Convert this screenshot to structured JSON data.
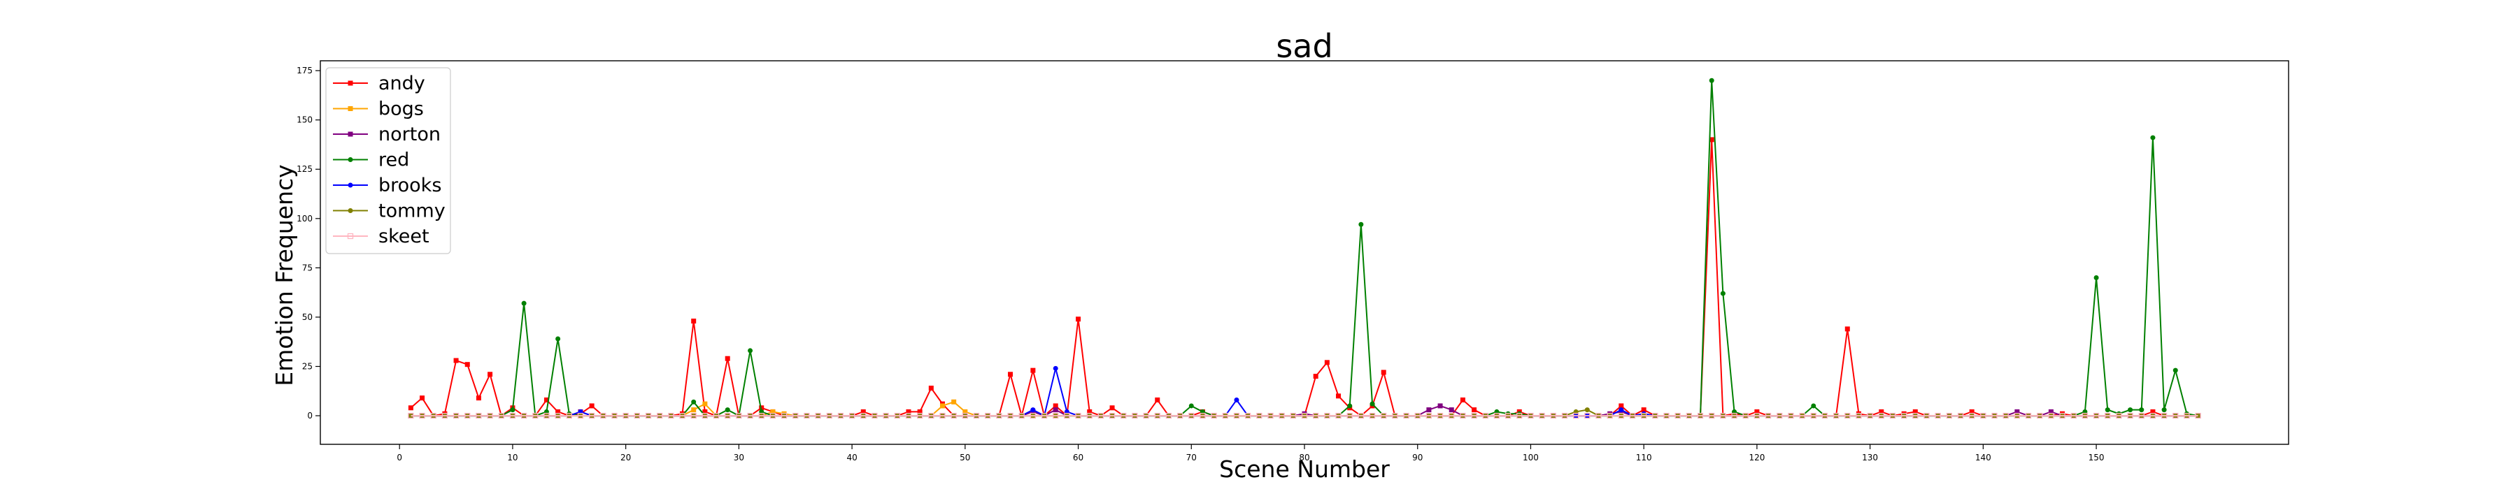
{
  "chart_data": {
    "type": "line",
    "title": "sad",
    "xlabel": "Scene Number",
    "ylabel": "Emotion Frequency",
    "xlim": [
      -7,
      167
    ],
    "ylim": [
      -14.5,
      180
    ],
    "x_ticks": [
      0,
      10,
      20,
      30,
      40,
      50,
      60,
      70,
      80,
      90,
      100,
      110,
      120,
      130,
      140,
      150
    ],
    "y_ticks": [
      0,
      25,
      50,
      75,
      100,
      125,
      150,
      175
    ],
    "x_range": [
      1,
      159
    ],
    "legend_position": "upper-left",
    "grid": false,
    "series": [
      {
        "name": "andy",
        "color": "#ff0000",
        "marker": "square",
        "points": [
          [
            1,
            4
          ],
          [
            2,
            9
          ],
          [
            4,
            1
          ],
          [
            5,
            28
          ],
          [
            6,
            26
          ],
          [
            7,
            9
          ],
          [
            8,
            21
          ],
          [
            10,
            4
          ],
          [
            13,
            8
          ],
          [
            14,
            2
          ],
          [
            16,
            1
          ],
          [
            17,
            5
          ],
          [
            25,
            1
          ],
          [
            26,
            48
          ],
          [
            27,
            2
          ],
          [
            29,
            29
          ],
          [
            32,
            4
          ],
          [
            33,
            2
          ],
          [
            41,
            2
          ],
          [
            45,
            2
          ],
          [
            46,
            2
          ],
          [
            47,
            14
          ],
          [
            48,
            6
          ],
          [
            54,
            21
          ],
          [
            56,
            23
          ],
          [
            58,
            5
          ],
          [
            60,
            49
          ],
          [
            61,
            2
          ],
          [
            63,
            4
          ],
          [
            67,
            8
          ],
          [
            71,
            2
          ],
          [
            81,
            20
          ],
          [
            82,
            27
          ],
          [
            83,
            10
          ],
          [
            84,
            4
          ],
          [
            86,
            5
          ],
          [
            87,
            22
          ],
          [
            94,
            8
          ],
          [
            95,
            3
          ],
          [
            99,
            2
          ],
          [
            108,
            5
          ],
          [
            110,
            3
          ],
          [
            116,
            140
          ],
          [
            118,
            1
          ],
          [
            120,
            2
          ],
          [
            128,
            44
          ],
          [
            129,
            1
          ],
          [
            131,
            2
          ],
          [
            133,
            1
          ],
          [
            134,
            2
          ],
          [
            139,
            2
          ],
          [
            147,
            1
          ],
          [
            155,
            2
          ]
        ]
      },
      {
        "name": "bogs",
        "color": "#ffa500",
        "marker": "square",
        "points": [
          [
            26,
            3
          ],
          [
            27,
            6
          ],
          [
            33,
            2
          ],
          [
            34,
            1
          ],
          [
            48,
            5
          ],
          [
            49,
            7
          ],
          [
            50,
            2
          ]
        ]
      },
      {
        "name": "norton",
        "color": "#800080",
        "marker": "square",
        "points": [
          [
            16,
            2
          ],
          [
            56,
            2
          ],
          [
            58,
            3
          ],
          [
            80,
            1
          ],
          [
            91,
            3
          ],
          [
            92,
            5
          ],
          [
            93,
            3
          ],
          [
            107,
            1
          ],
          [
            108,
            2
          ],
          [
            143,
            2
          ],
          [
            146,
            2
          ]
        ]
      },
      {
        "name": "red",
        "color": "#008000",
        "marker": "circle",
        "points": [
          [
            10,
            3
          ],
          [
            11,
            57
          ],
          [
            13,
            2
          ],
          [
            14,
            39
          ],
          [
            15,
            1
          ],
          [
            26,
            7
          ],
          [
            29,
            3
          ],
          [
            31,
            33
          ],
          [
            32,
            2
          ],
          [
            70,
            5
          ],
          [
            71,
            2
          ],
          [
            84,
            5
          ],
          [
            85,
            97
          ],
          [
            86,
            6
          ],
          [
            97,
            2
          ],
          [
            98,
            1
          ],
          [
            99,
            1
          ],
          [
            116,
            170
          ],
          [
            117,
            62
          ],
          [
            118,
            2
          ],
          [
            125,
            5
          ],
          [
            149,
            2
          ],
          [
            150,
            70
          ],
          [
            151,
            3
          ],
          [
            152,
            1
          ],
          [
            153,
            3
          ],
          [
            154,
            3
          ],
          [
            155,
            141
          ],
          [
            156,
            3
          ],
          [
            157,
            23
          ],
          [
            158,
            1
          ]
        ]
      },
      {
        "name": "brooks",
        "color": "#0000ff",
        "marker": "circle",
        "points": [
          [
            16,
            2
          ],
          [
            56,
            3
          ],
          [
            58,
            24
          ],
          [
            59,
            2
          ],
          [
            74,
            8
          ],
          [
            108,
            3
          ],
          [
            110,
            1
          ]
        ]
      },
      {
        "name": "tommy",
        "color": "#808000",
        "marker": "circle",
        "points": [
          [
            104,
            2
          ],
          [
            105,
            3
          ]
        ]
      },
      {
        "name": "skeet",
        "color": "#ffb6c1",
        "marker": "square-open",
        "points": []
      }
    ]
  }
}
